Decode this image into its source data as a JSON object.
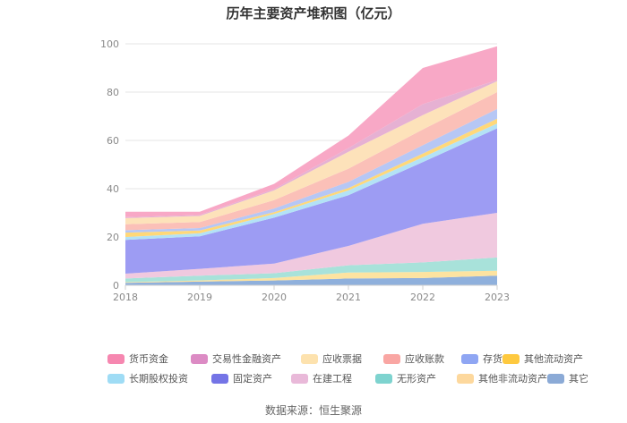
{
  "chart_data": {
    "type": "area",
    "stacked": true,
    "title": "历年主要资产堆积图（亿元）",
    "x": [
      "2018",
      "2019",
      "2020",
      "2021",
      "2022",
      "2023"
    ],
    "ylim": [
      0,
      100
    ],
    "yticks": [
      0,
      20,
      40,
      60,
      80,
      100
    ],
    "grid": true,
    "legend_position": "bottom",
    "series": [
      {
        "name": "其它",
        "color": "#8fb0dc",
        "values": [
          1.0,
          1.5,
          2.0,
          2.8,
          3.0,
          4.0
        ]
      },
      {
        "name": "其他非流动资产",
        "color": "#fde3a0",
        "values": [
          0.3,
          0.5,
          1.0,
          2.5,
          2.5,
          2.0
        ]
      },
      {
        "name": "无形资产",
        "color": "#a8e2da",
        "values": [
          1.5,
          2.0,
          2.0,
          3.0,
          4.0,
          5.5
        ]
      },
      {
        "name": "在建工程",
        "color": "#f0c9df",
        "values": [
          2.0,
          2.8,
          4.0,
          8.0,
          16.0,
          18.5
        ]
      },
      {
        "name": "固定资产",
        "color": "#9d9cf3",
        "values": [
          14.0,
          13.5,
          19.0,
          21.0,
          25.5,
          35.0
        ]
      },
      {
        "name": "长期股权投资",
        "color": "#b3e2f6",
        "values": [
          1.2,
          1.2,
          1.5,
          2.0,
          2.0,
          2.0
        ]
      },
      {
        "name": "其他流动资产",
        "color": "#ffd879",
        "values": [
          1.8,
          1.2,
          0.8,
          1.0,
          1.5,
          2.0
        ]
      },
      {
        "name": "存货",
        "color": "#b6c7f5",
        "values": [
          1.0,
          1.0,
          1.5,
          2.5,
          3.5,
          4.0
        ]
      },
      {
        "name": "应收账款",
        "color": "#fbc0b8",
        "values": [
          2.5,
          2.5,
          3.5,
          5.5,
          6.5,
          7.0
        ]
      },
      {
        "name": "应收票据",
        "color": "#fde2ba",
        "values": [
          2.5,
          2.5,
          4.0,
          7.0,
          6.0,
          4.5
        ]
      },
      {
        "name": "交易性金融资产",
        "color": "#e6b1d3",
        "values": [
          0.4,
          0.4,
          0.5,
          1.5,
          4.5,
          0.5
        ]
      },
      {
        "name": "货币资金",
        "color": "#f8a8c6",
        "values": [
          2.3,
          1.4,
          2.2,
          5.2,
          15.0,
          14.0
        ]
      }
    ]
  },
  "legend": {
    "items": [
      {
        "name": "货币资金",
        "color": "#f687b0"
      },
      {
        "name": "交易性金融资产",
        "color": "#dc8bc4"
      },
      {
        "name": "应收票据",
        "color": "#fde2ae"
      },
      {
        "name": "应收账款",
        "color": "#f9a6a3"
      },
      {
        "name": "存货",
        "color": "#8fa6f3"
      },
      {
        "name": "其他流动资产",
        "color": "#fec93f"
      },
      {
        "name": "长期股权投资",
        "color": "#9fdcf5"
      },
      {
        "name": "固定资产",
        "color": "#7474e6"
      },
      {
        "name": "在建工程",
        "color": "#e9b9d9"
      },
      {
        "name": "无形资产",
        "color": "#7ed3cf"
      },
      {
        "name": "其他非流动资产",
        "color": "#fdd89d"
      },
      {
        "name": "其它",
        "color": "#8baad6"
      }
    ]
  },
  "source": "数据来源：恒生聚源"
}
